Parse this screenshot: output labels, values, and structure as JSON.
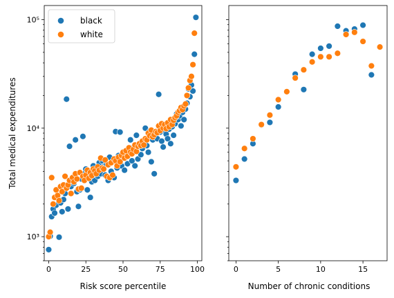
{
  "chart_data": [
    {
      "type": "scatter",
      "xlabel": "Risk score percentile",
      "ylabel": "Total medical expenditures",
      "yscale": "log",
      "xlim": [
        -3,
        103
      ],
      "ylim": [
        600,
        135000
      ],
      "xticks": [
        0,
        25,
        50,
        75,
        100
      ],
      "yticks": [
        {
          "value": 1000,
          "label": "10³"
        },
        {
          "value": 10000,
          "label": "10⁴"
        },
        {
          "value": 100000,
          "label": "10⁵"
        }
      ],
      "legend": {
        "position": "top-left",
        "entries": [
          "black",
          "white"
        ]
      },
      "series": [
        {
          "name": "black",
          "color": "#1f77b4",
          "points": [
            [
              0,
              760
            ],
            [
              1,
              1010
            ],
            [
              2,
              1530
            ],
            [
              3,
              1800
            ],
            [
              4,
              1650
            ],
            [
              5,
              1950
            ],
            [
              6,
              2300
            ],
            [
              7,
              990
            ],
            [
              8,
              2050
            ],
            [
              9,
              1700
            ],
            [
              10,
              2200
            ],
            [
              11,
              2500
            ],
            [
              12,
              18500
            ],
            [
              13,
              1800
            ],
            [
              14,
              6800
            ],
            [
              15,
              2900
            ],
            [
              16,
              3300
            ],
            [
              17,
              3100
            ],
            [
              18,
              7800
            ],
            [
              19,
              2600
            ],
            [
              20,
              1900
            ],
            [
              21,
              2700
            ],
            [
              22,
              3400
            ],
            [
              23,
              8400
            ],
            [
              24,
              3800
            ],
            [
              25,
              4200
            ],
            [
              26,
              2700
            ],
            [
              27,
              3600
            ],
            [
              28,
              2300
            ],
            [
              29,
              3200
            ],
            [
              30,
              4500
            ],
            [
              31,
              3300
            ],
            [
              32,
              4100
            ],
            [
              33,
              3600
            ],
            [
              34,
              4800
            ],
            [
              35,
              3800
            ],
            [
              36,
              5000
            ],
            [
              37,
              4400
            ],
            [
              38,
              3700
            ],
            [
              39,
              4600
            ],
            [
              40,
              3300
            ],
            [
              41,
              5400
            ],
            [
              42,
              4000
            ],
            [
              43,
              4900
            ],
            [
              44,
              3500
            ],
            [
              45,
              9300
            ],
            [
              46,
              4300
            ],
            [
              47,
              5600
            ],
            [
              48,
              9200
            ],
            [
              49,
              4500
            ],
            [
              50,
              5800
            ],
            [
              51,
              4100
            ],
            [
              52,
              6000
            ],
            [
              53,
              4700
            ],
            [
              54,
              6400
            ],
            [
              55,
              7800
            ],
            [
              56,
              5000
            ],
            [
              57,
              6600
            ],
            [
              58,
              4500
            ],
            [
              59,
              8600
            ],
            [
              60,
              5200
            ],
            [
              61,
              7200
            ],
            [
              62,
              5700
            ],
            [
              63,
              6500
            ],
            [
              64,
              7400
            ],
            [
              65,
              10000
            ],
            [
              66,
              6900
            ],
            [
              67,
              6000
            ],
            [
              68,
              9400
            ],
            [
              69,
              4900
            ],
            [
              70,
              7800
            ],
            [
              71,
              3800
            ],
            [
              72,
              8600
            ],
            [
              73,
              8000
            ],
            [
              74,
              20500
            ],
            [
              75,
              9200
            ],
            [
              76,
              7600
            ],
            [
              77,
              6700
            ],
            [
              78,
              9500
            ],
            [
              79,
              8800
            ],
            [
              80,
              8000
            ],
            [
              81,
              9800
            ],
            [
              82,
              7200
            ],
            [
              83,
              10300
            ],
            [
              84,
              8600
            ],
            [
              85,
              11000
            ],
            [
              86,
              13500
            ],
            [
              87,
              12000
            ],
            [
              88,
              13000
            ],
            [
              89,
              10500
            ],
            [
              90,
              14000
            ],
            [
              91,
              12000
            ],
            [
              92,
              15000
            ],
            [
              93,
              17000
            ],
            [
              94,
              23000
            ],
            [
              95,
              19500
            ],
            [
              96,
              25000
            ],
            [
              97,
              22000
            ],
            [
              98,
              48000
            ],
            [
              99,
              105000
            ]
          ]
        },
        {
          "name": "white",
          "color": "#ff7f0e",
          "points": [
            [
              0,
              1000
            ],
            [
              1,
              1100
            ],
            [
              2,
              3500
            ],
            [
              3,
              2000
            ],
            [
              4,
              2300
            ],
            [
              5,
              2700
            ],
            [
              6,
              2400
            ],
            [
              7,
              2150
            ],
            [
              8,
              2900
            ],
            [
              9,
              2600
            ],
            [
              10,
              3000
            ],
            [
              11,
              3600
            ],
            [
              12,
              2800
            ],
            [
              13,
              3000
            ],
            [
              14,
              3300
            ],
            [
              15,
              2500
            ],
            [
              16,
              3500
            ],
            [
              17,
              3200
            ],
            [
              18,
              3800
            ],
            [
              19,
              3400
            ],
            [
              20,
              2750
            ],
            [
              21,
              3900
            ],
            [
              22,
              2800
            ],
            [
              23,
              3600
            ],
            [
              24,
              3300
            ],
            [
              25,
              3700
            ],
            [
              26,
              4100
            ],
            [
              27,
              3450
            ],
            [
              28,
              3900
            ],
            [
              29,
              3650
            ],
            [
              30,
              4200
            ],
            [
              31,
              4050
            ],
            [
              32,
              3800
            ],
            [
              33,
              4400
            ],
            [
              34,
              4100
            ],
            [
              35,
              5300
            ],
            [
              36,
              4300
            ],
            [
              37,
              4200
            ],
            [
              38,
              5100
            ],
            [
              39,
              3600
            ],
            [
              40,
              4600
            ],
            [
              41,
              3500
            ],
            [
              42,
              4800
            ],
            [
              43,
              3700
            ],
            [
              44,
              5200
            ],
            [
              45,
              5000
            ],
            [
              46,
              4500
            ],
            [
              47,
              5400
            ],
            [
              48,
              4900
            ],
            [
              49,
              5600
            ],
            [
              50,
              6000
            ],
            [
              51,
              5300
            ],
            [
              52,
              6200
            ],
            [
              53,
              5500
            ],
            [
              54,
              6600
            ],
            [
              55,
              6000
            ],
            [
              56,
              5800
            ],
            [
              57,
              6400
            ],
            [
              58,
              7000
            ],
            [
              59,
              6100
            ],
            [
              60,
              6800
            ],
            [
              61,
              7200
            ],
            [
              62,
              6900
            ],
            [
              63,
              7600
            ],
            [
              64,
              7000
            ],
            [
              65,
              8000
            ],
            [
              66,
              7800
            ],
            [
              67,
              9000
            ],
            [
              68,
              8500
            ],
            [
              69,
              9600
            ],
            [
              70,
              8300
            ],
            [
              71,
              8700
            ],
            [
              72,
              9300
            ],
            [
              73,
              9100
            ],
            [
              74,
              10500
            ],
            [
              75,
              9500
            ],
            [
              76,
              11000
            ],
            [
              77,
              10000
            ],
            [
              78,
              10800
            ],
            [
              79,
              9900
            ],
            [
              80,
              11200
            ],
            [
              81,
              10300
            ],
            [
              82,
              12000
            ],
            [
              83,
              10800
            ],
            [
              84,
              11800
            ],
            [
              85,
              12500
            ],
            [
              86,
              13000
            ],
            [
              87,
              14000
            ],
            [
              88,
              14500
            ],
            [
              89,
              15500
            ],
            [
              90,
              14800
            ],
            [
              91,
              16000
            ],
            [
              92,
              16700
            ],
            [
              93,
              20000
            ],
            [
              94,
              23500
            ],
            [
              95,
              27500
            ],
            [
              96,
              30000
            ],
            [
              97,
              38500
            ],
            [
              98,
              75000
            ]
          ]
        }
      ]
    },
    {
      "type": "scatter",
      "xlabel": "Number of chronic conditions",
      "ylabel": "",
      "yscale": "log",
      "xlim": [
        -0.85,
        17.85
      ],
      "ylim": [
        600,
        135000
      ],
      "xticks": [
        0,
        5,
        10,
        15
      ],
      "series": [
        {
          "name": "black",
          "color": "#1f77b4",
          "points": [
            [
              0,
              3300
            ],
            [
              1,
              5200
            ],
            [
              2,
              7200
            ],
            [
              3,
              10700
            ],
            [
              4,
              11300
            ],
            [
              5,
              15700
            ],
            [
              6,
              21700
            ],
            [
              7,
              31500
            ],
            [
              8,
              22700
            ],
            [
              9,
              48000
            ],
            [
              10,
              54500
            ],
            [
              11,
              57000
            ],
            [
              12,
              87000
            ],
            [
              13,
              79000
            ],
            [
              14,
              82000
            ],
            [
              15,
              89000
            ],
            [
              16,
              31000
            ]
          ]
        },
        {
          "name": "white",
          "color": "#ff7f0e",
          "points": [
            [
              0,
              4400
            ],
            [
              1,
              6500
            ],
            [
              2,
              8000
            ],
            [
              3,
              10800
            ],
            [
              4,
              13200
            ],
            [
              5,
              18300
            ],
            [
              6,
              21700
            ],
            [
              7,
              29000
            ],
            [
              8,
              34500
            ],
            [
              9,
              40800
            ],
            [
              10,
              45500
            ],
            [
              11,
              45500
            ],
            [
              12,
              49000
            ],
            [
              13,
              73000
            ],
            [
              14,
              76500
            ],
            [
              15,
              63000
            ],
            [
              16,
              37500
            ],
            [
              17,
              56000
            ]
          ]
        }
      ]
    }
  ]
}
